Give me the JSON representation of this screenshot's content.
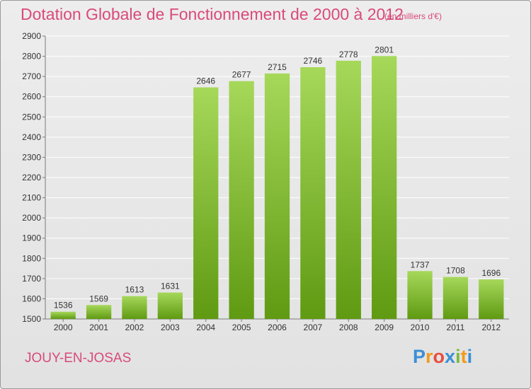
{
  "header": {
    "title": "Dotation Globale de Fonctionnement de 2000 à 2012",
    "unit_note": "(en milliers d'€)"
  },
  "footer": {
    "commune": "JOUY-EN-JOSAS",
    "logo_text": "Proxiti",
    "logo_colors": [
      "#3a8fd6",
      "#f39a1c",
      "#e84e3c",
      "#3a8fd6",
      "#7ab93b",
      "#f39a1c",
      "#3a8fd6"
    ]
  },
  "colors": {
    "bar_light": "#a6d85a",
    "bar_dark": "#5f9a12",
    "axis": "#7a7a7a",
    "grid": "#ffffff",
    "text": "#333333",
    "accent": "#d94a7a"
  },
  "chart_data": {
    "type": "bar",
    "title": "Dotation Globale de Fonctionnement de 2000 à 2012",
    "subtitle": "(en milliers d'€)",
    "xlabel": "",
    "ylabel": "",
    "categories": [
      "2000",
      "2001",
      "2002",
      "2003",
      "2004",
      "2005",
      "2006",
      "2007",
      "2008",
      "2009",
      "2010",
      "2011",
      "2012"
    ],
    "values": [
      1536,
      1569,
      1613,
      1631,
      2646,
      2677,
      2715,
      2746,
      2778,
      2801,
      1737,
      1708,
      1696
    ],
    "ylim": [
      1500,
      2900
    ],
    "yticks": [
      1500,
      1600,
      1700,
      1800,
      1900,
      2000,
      2100,
      2200,
      2300,
      2400,
      2500,
      2600,
      2700,
      2800,
      2900
    ],
    "grid": true,
    "data_labels": true,
    "legend": "none"
  }
}
